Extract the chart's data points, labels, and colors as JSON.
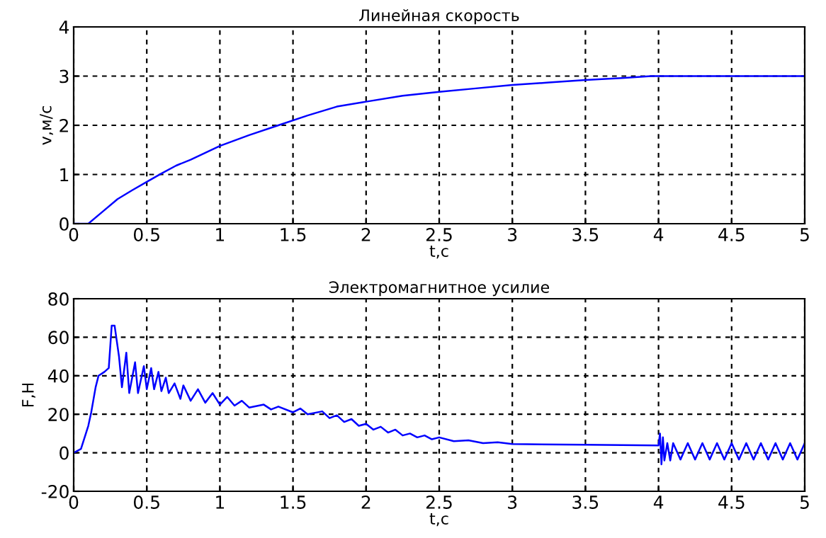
{
  "chart_data": [
    {
      "type": "line",
      "title": "Линейная скорость",
      "xlabel": "t,c",
      "ylabel": "v,м/с",
      "xlim": [
        0,
        5
      ],
      "ylim": [
        0,
        4
      ],
      "xticks": [
        0,
        0.5,
        1,
        1.5,
        2,
        2.5,
        3,
        3.5,
        4,
        4.5,
        5
      ],
      "yticks": [
        0,
        1,
        2,
        3,
        4
      ],
      "grid": true,
      "series": [
        {
          "color": "#0000ff",
          "x": [
            0,
            0.1,
            0.2,
            0.3,
            0.4,
            0.5,
            0.6,
            0.7,
            0.8,
            1.0,
            1.2,
            1.4,
            1.6,
            1.8,
            2.0,
            2.25,
            2.5,
            2.75,
            3.0,
            3.25,
            3.5,
            3.75,
            3.95,
            4.0,
            5.0
          ],
          "values": [
            0,
            0,
            0.25,
            0.5,
            0.68,
            0.85,
            1.02,
            1.18,
            1.3,
            1.58,
            1.8,
            2.0,
            2.2,
            2.38,
            2.48,
            2.6,
            2.68,
            2.75,
            2.82,
            2.87,
            2.92,
            2.96,
            3.0,
            3.0,
            3.0
          ]
        }
      ]
    },
    {
      "type": "line",
      "title": "Электромагнитное усилие",
      "xlabel": "t,c",
      "ylabel": "F,Н",
      "xlim": [
        0,
        5
      ],
      "ylim": [
        -20,
        80
      ],
      "xticks": [
        0,
        0.5,
        1,
        1.5,
        2,
        2.5,
        3,
        3.5,
        4,
        4.5,
        5
      ],
      "yticks": [
        -20,
        0,
        20,
        40,
        60,
        80
      ],
      "grid": true,
      "series": [
        {
          "color": "#0000ff",
          "x": [
            0,
            0.05,
            0.1,
            0.12,
            0.15,
            0.17,
            0.21,
            0.24,
            0.26,
            0.28,
            0.31,
            0.33,
            0.36,
            0.38,
            0.42,
            0.44,
            0.48,
            0.5,
            0.53,
            0.55,
            0.58,
            0.6,
            0.63,
            0.65,
            0.69,
            0.73,
            0.75,
            0.8,
            0.85,
            0.9,
            0.95,
            1.0,
            1.05,
            1.1,
            1.15,
            1.2,
            1.3,
            1.35,
            1.4,
            1.5,
            1.55,
            1.6,
            1.7,
            1.75,
            1.8,
            1.85,
            1.9,
            1.95,
            2.0,
            2.05,
            2.1,
            2.15,
            2.2,
            2.25,
            2.3,
            2.35,
            2.4,
            2.45,
            2.5,
            2.6,
            2.7,
            2.8,
            2.9,
            3.0,
            3.5,
            4.0,
            4.01,
            4.02,
            4.03,
            4.04,
            4.06,
            4.08,
            4.1,
            4.15,
            4.2,
            4.25,
            4.3,
            4.35,
            4.4,
            4.45,
            4.5,
            4.55,
            4.6,
            4.65,
            4.7,
            4.75,
            4.8,
            4.85,
            4.9,
            4.95,
            5.0
          ],
          "values": [
            0,
            2,
            14,
            21,
            34,
            40,
            42,
            44,
            66,
            66,
            50,
            34,
            52,
            31,
            47,
            31,
            45,
            33,
            44,
            33,
            42,
            32,
            39,
            31,
            36,
            28,
            35,
            27,
            33,
            26,
            31,
            25,
            29,
            24.5,
            27,
            23.5,
            25,
            22.5,
            24,
            21,
            23,
            20,
            21.5,
            18,
            19.5,
            16,
            17.5,
            14,
            15,
            12,
            13.5,
            10.5,
            12,
            9,
            10,
            8,
            9,
            7,
            8,
            6,
            6.5,
            5,
            5.5,
            4.5,
            4.2,
            3.8,
            10,
            -6,
            8,
            -4,
            5,
            -4,
            5,
            -3.5,
            5,
            -3.5,
            5,
            -3.5,
            5,
            -3.5,
            5,
            -3.5,
            5,
            -3.5,
            5,
            -3.5,
            5,
            -3.5,
            5,
            -3.5,
            5
          ]
        }
      ]
    }
  ]
}
